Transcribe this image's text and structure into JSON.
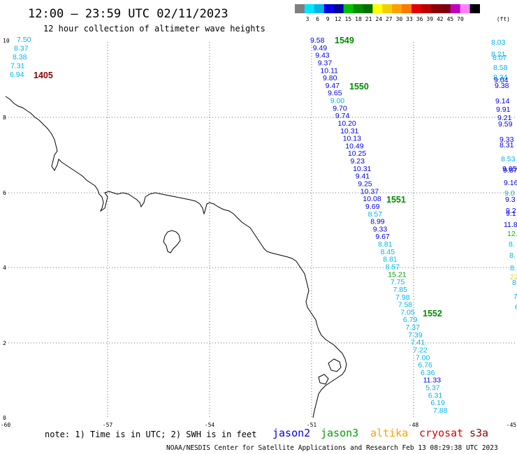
{
  "header": {
    "title": "12:00 – 23:59 UTC 02/11/2023",
    "subtitle": "12 hour collection of altimeter wave heights"
  },
  "colorbar": {
    "unit": "(ft)",
    "colors": [
      "#7f7f7f",
      "#00e5ff",
      "#00b5e8",
      "#0000e8",
      "#00009a",
      "#00c000",
      "#008a00",
      "#007000",
      "#ffff00",
      "#f0d000",
      "#ffa000",
      "#ff7800",
      "#e00000",
      "#b80000",
      "#8b0000",
      "#7a0010",
      "#c000c0",
      "#ff80ff",
      "#000000"
    ],
    "labels": [
      "3",
      "6",
      "9",
      "12",
      "15",
      "18",
      "21",
      "24",
      "27",
      "30",
      "33",
      "36",
      "39",
      "42",
      "45",
      "70"
    ]
  },
  "axes": {
    "x_ticks": [
      "-60",
      "-57",
      "-54",
      "-51",
      "-48",
      "-45"
    ],
    "y_ticks": [
      "0",
      "2",
      "4",
      "6",
      "8",
      "10"
    ]
  },
  "passes": [
    {
      "label": "1405",
      "color": "#8b0000"
    },
    {
      "label": "1549",
      "color": "#008a00"
    },
    {
      "label": "1550",
      "color": "#008a00"
    },
    {
      "label": "1551",
      "color": "#008a00"
    },
    {
      "label": "1552",
      "color": "#008a00"
    }
  ],
  "track_left": {
    "values": [
      "7.50",
      "8.37",
      "8.38",
      "7.31",
      "6.94"
    ],
    "colors": [
      "#00b5e8",
      "#00b5e8",
      "#00b5e8",
      "#00b5e8",
      "#00b5e8"
    ]
  },
  "track_main": {
    "values": [
      "9.58",
      "9.49",
      "9.43",
      "9.37",
      "10.11",
      "9.80",
      "9.47",
      "9.65",
      "9.00",
      "9.70",
      "9.74",
      "10.20",
      "10.31",
      "10.13",
      "10.49",
      "10.25",
      "9.23",
      "10.31",
      "9.41",
      "9.25",
      "10.37",
      "10.08",
      "9.69",
      "8.57",
      "8.99",
      "9.33",
      "9.67",
      "8.81",
      "8.45",
      "8.81",
      "8.57",
      "15.21",
      "7.75",
      "7.85",
      "7.98",
      "7.58",
      "7.05",
      "6.79",
      "7.37",
      "7.39",
      "7.41",
      "7.22",
      "7.00",
      "6.76",
      "6.36",
      "11.33",
      "5.37",
      "6.31",
      "6.19",
      "7.88"
    ],
    "colors": [
      "#0000e8",
      "#0000e8",
      "#0000e8",
      "#0000e8",
      "#0000e8",
      "#0000e8",
      "#0000e8",
      "#0000e8",
      "#00b5e8",
      "#0000e8",
      "#0000e8",
      "#0000e8",
      "#0000e8",
      "#0000e8",
      "#0000e8",
      "#0000e8",
      "#0000e8",
      "#0000e8",
      "#0000e8",
      "#0000e8",
      "#0000e8",
      "#0000e8",
      "#0000e8",
      "#00b5e8",
      "#0000e8",
      "#0000e8",
      "#0000e8",
      "#00b5e8",
      "#00b5e8",
      "#00b5e8",
      "#00b5e8",
      "#00a000",
      "#00b5e8",
      "#00b5e8",
      "#00b5e8",
      "#00b5e8",
      "#00b5e8",
      "#00b5e8",
      "#00b5e8",
      "#00b5e8",
      "#00b5e8",
      "#00b5e8",
      "#00b5e8",
      "#00b5e8",
      "#00b5e8",
      "#0000e8",
      "#00b5e8",
      "#00b5e8",
      "#00b5e8",
      "#00b5e8"
    ]
  },
  "track_right": {
    "values": [
      "8.03",
      "8.21",
      "8.07",
      "8.58",
      "8.34",
      "9.04",
      "9.38",
      "9.14",
      "9.91",
      "9.21",
      "9.59",
      "9.33",
      "8.31",
      "8.53",
      "9.65",
      "9.87",
      "9.16",
      "9.0",
      "9.3",
      "9.2",
      "9.1",
      "11.8",
      "12.",
      "8.",
      "8.",
      "8.",
      "22",
      "8",
      "7",
      "6"
    ],
    "colors": [
      "#00b5e8",
      "#00b5e8",
      "#00b5e8",
      "#00b5e8",
      "#00b5e8",
      "#0000e8",
      "#0000e8",
      "#0000e8",
      "#0000e8",
      "#0000e8",
      "#0000e8",
      "#0000e8",
      "#0000e8",
      "#00b5e8",
      "#0000e8",
      "#0000e8",
      "#0000e8",
      "#00b5e8",
      "#0000e8",
      "#0000e8",
      "#0000e8",
      "#0000e8",
      "#00c000",
      "#00b5e8",
      "#00b5e8",
      "#00b5e8",
      "#f0d000",
      "#00b5e8",
      "#00b5e8",
      "#00b5e8"
    ]
  },
  "footer": {
    "note": "note:  1) Time is in UTC; 2) SWH is in feet",
    "satellites": [
      {
        "name": "jason2",
        "color": "#0000e8"
      },
      {
        "name": "jason3",
        "color": "#00a000"
      },
      {
        "name": "altika",
        "color": "#ffa000"
      },
      {
        "name": "cryosat",
        "color": "#e00000"
      },
      {
        "name": "s3a",
        "color": "#8b0000"
      }
    ],
    "credit": "NOAA/NESDIS Center for Satellite Applications and Research    Feb 13 08:29:38 UTC 2023"
  }
}
